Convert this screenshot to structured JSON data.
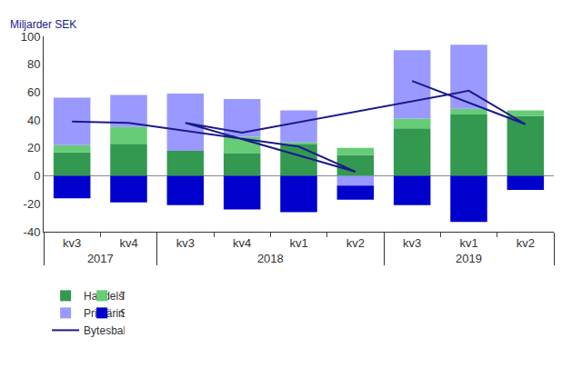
{
  "chart_data": {
    "type": "bar",
    "stacked": true,
    "y_label": "Miljarder SEK",
    "categories": [
      [
        "2017",
        "kv3"
      ],
      [
        "2017",
        "kv4"
      ],
      [
        "2018",
        "kv1"
      ],
      [
        "2018",
        "kv2"
      ],
      [
        "2018",
        "kv3"
      ],
      [
        "2018",
        "kv4"
      ],
      [
        "2019",
        "kv1"
      ],
      [
        "2019",
        "kv2"
      ],
      [
        "2019",
        "kv3"
      ]
    ],
    "series": [
      {
        "name": "Handelsbalans",
        "type": "bar",
        "color": "#339950",
        "values": [
          17,
          23,
          23,
          15,
          18,
          16,
          44,
          43,
          34
        ]
      },
      {
        "name": "Tjänstebalans",
        "type": "bar",
        "color": "#66cc77",
        "values": [
          5,
          12,
          1,
          5,
          0,
          12,
          4,
          4,
          7
        ]
      },
      {
        "name": "Primärinkomster",
        "type": "bar",
        "color": "#9999ff",
        "values": [
          34,
          23,
          23,
          -7,
          41,
          27,
          46,
          0,
          49
        ]
      },
      {
        "name": "Sekundärinkomster",
        "type": "bar",
        "color": "#0000cc",
        "values": [
          -16,
          -19,
          -26,
          -10,
          -21,
          -24,
          -33,
          -10,
          -21
        ]
      },
      {
        "name": "Bytesbalans",
        "type": "line",
        "color": "#1a1a8c",
        "values": [
          39,
          38,
          21,
          3,
          38,
          31,
          61,
          37,
          68
        ]
      }
    ],
    "ylim": [
      -40,
      100
    ],
    "yticks": [
      -40,
      -20,
      0,
      20,
      40,
      60,
      80,
      100
    ],
    "grid": false,
    "legend": "bottom"
  }
}
